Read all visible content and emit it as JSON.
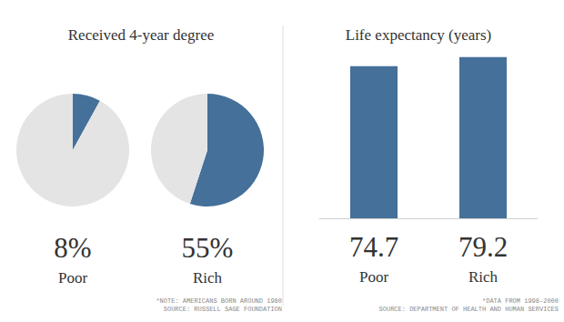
{
  "chart_data": [
    {
      "type": "pie",
      "title": "Received 4-year degree",
      "categories": [
        "Poor",
        "Rich"
      ],
      "values": [
        8,
        55
      ],
      "value_labels": [
        "8%",
        "55%"
      ],
      "color": "#44709a",
      "data_labels": true,
      "annotations": [
        "*NOTE: AMERICANS BORN AROUND 1980",
        "SOURCE: RUSSELL SAGE FOUNDATION"
      ]
    },
    {
      "type": "bar",
      "title": "Life expectancy (years)",
      "categories": [
        "Poor",
        "Rich"
      ],
      "values": [
        74.7,
        79.2
      ],
      "color": "#44709a",
      "ylim": [
        0,
        80
      ],
      "yticks": [
        0,
        80
      ],
      "grid": false,
      "data_labels": true,
      "tick_labels": "x",
      "annotations": [
        "*DATA FROM 1998-2000",
        "SOURCE: DEPARTMENT OF HEALTH AND HUMAN SERVICES"
      ]
    }
  ]
}
